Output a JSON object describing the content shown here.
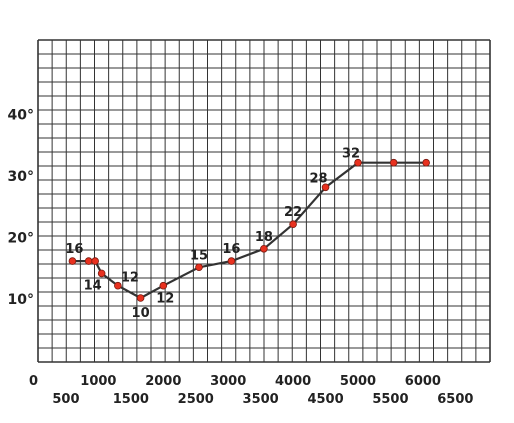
{
  "chart_data": {
    "type": "line",
    "title": "",
    "xlabel": "",
    "ylabel": "",
    "grid": true,
    "xlim": [
      0,
      6500
    ],
    "ylim": [
      -10,
      50
    ],
    "x_ticks_row1": [
      "0",
      "1000",
      "2000",
      "3000",
      "4000",
      "5000",
      "6000"
    ],
    "x_ticks_row2": [
      "500",
      "1500",
      "2500",
      "3500",
      "4500",
      "5500",
      "6500"
    ],
    "y_ticks": [
      "10°",
      "20°",
      "30°",
      "40°"
    ],
    "series": [
      {
        "color": "#333333",
        "marker_color": "#e8311f",
        "x": [
          600,
          850,
          950,
          1050,
          1300,
          1650,
          2000,
          2550,
          3050,
          3550,
          4000,
          4500,
          5000,
          5550,
          6050
        ],
        "y": [
          16,
          16,
          16,
          14,
          12,
          10,
          12,
          15,
          16,
          18,
          22,
          28,
          32,
          32,
          32
        ],
        "labels": [
          "16",
          "",
          "",
          "14",
          "12",
          "10",
          "12",
          "15",
          "16",
          "18",
          "22",
          "28",
          "32",
          "",
          ""
        ]
      }
    ]
  }
}
